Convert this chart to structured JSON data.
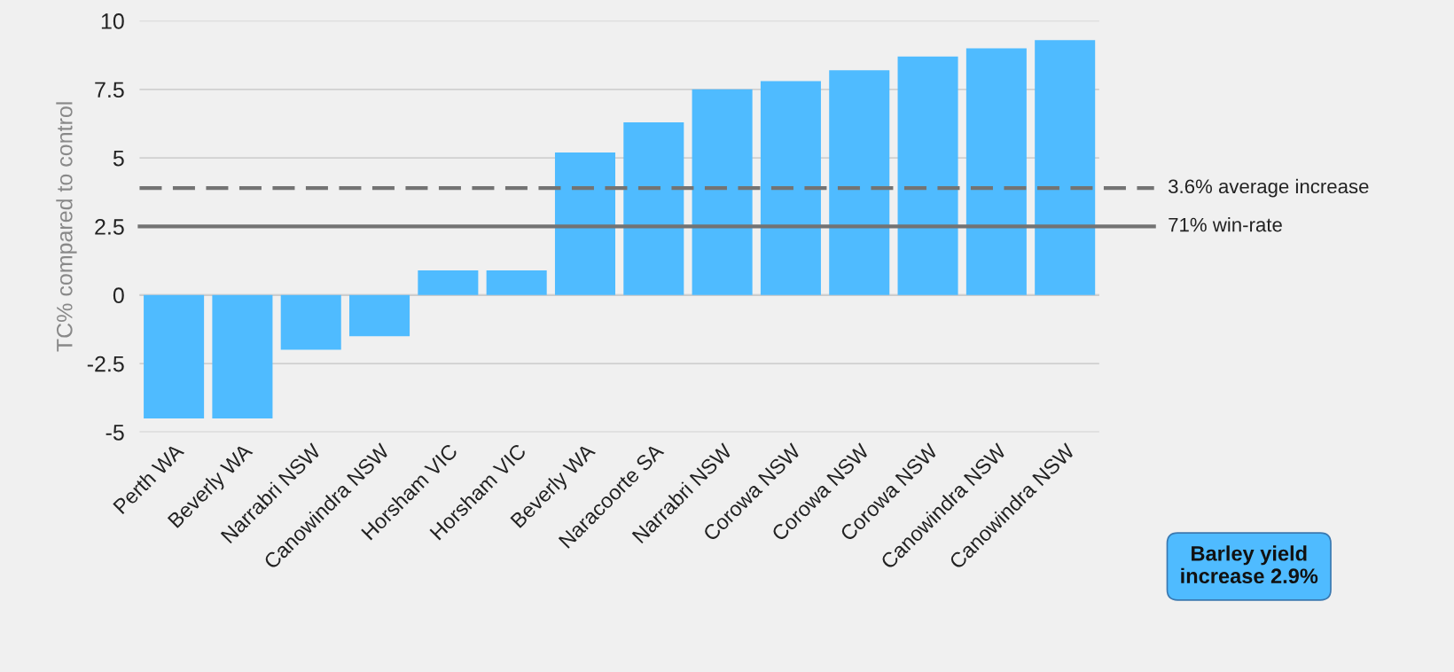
{
  "chart_data": {
    "type": "bar",
    "ylabel": "TC% compared to control",
    "categories": [
      "Perth WA",
      "Beverly WA",
      "Narrabri NSW",
      "Canowindra NSW",
      "Horsham VIC",
      "Horsham VIC",
      "Beverly WA",
      "Naracoorte SA",
      "Narrabri NSW",
      "Corowa NSW",
      "Corowa NSW",
      "Corowa NSW",
      "Canowindra NSW",
      "Canowindra NSW"
    ],
    "values": [
      -4.5,
      -4.5,
      -2.0,
      -1.5,
      0.9,
      0.9,
      5.2,
      6.3,
      7.5,
      7.8,
      8.2,
      8.7,
      9.0,
      9.3
    ],
    "color": "#4fbbff",
    "ylim": [
      -5,
      10
    ],
    "yticks": [
      -5,
      -2.5,
      0,
      2.5,
      5,
      7.5,
      10
    ],
    "grid": "y",
    "ref_lines": [
      {
        "axis": "y",
        "value": 3.9,
        "label": "3.6% average increase",
        "color": "#737373",
        "line_style": "dashed"
      },
      {
        "axis": "y",
        "value": 2.5,
        "label": "71% win-rate",
        "color": "#737373",
        "line_style": "solid"
      }
    ],
    "annotations": [
      "Barley yield\nincrease 2.9%"
    ]
  }
}
